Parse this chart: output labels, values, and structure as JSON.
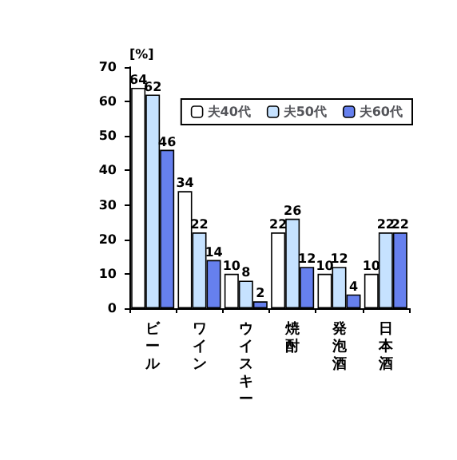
{
  "chart_data": {
    "type": "bar",
    "ylabel": "[%]",
    "categories": [
      "ビール",
      "ワイン",
      "ウイスキー",
      "焼酎",
      "発泡酒",
      "日本酒"
    ],
    "series": [
      {
        "name": "夫40代",
        "color": "#ffffff",
        "values": [
          64,
          34,
          10,
          22,
          10,
          10
        ]
      },
      {
        "name": "夫50代",
        "color": "#c6e2ff",
        "values": [
          62,
          22,
          8,
          26,
          12,
          22
        ]
      },
      {
        "name": "夫60代",
        "color": "#6680ee",
        "values": [
          46,
          14,
          2,
          12,
          4,
          22
        ]
      }
    ],
    "ylim": [
      0,
      70
    ],
    "yticks": [
      0,
      10,
      20,
      30,
      40,
      50,
      60,
      70
    ],
    "grid": false,
    "legend": "top right",
    "data_labels": true
  }
}
